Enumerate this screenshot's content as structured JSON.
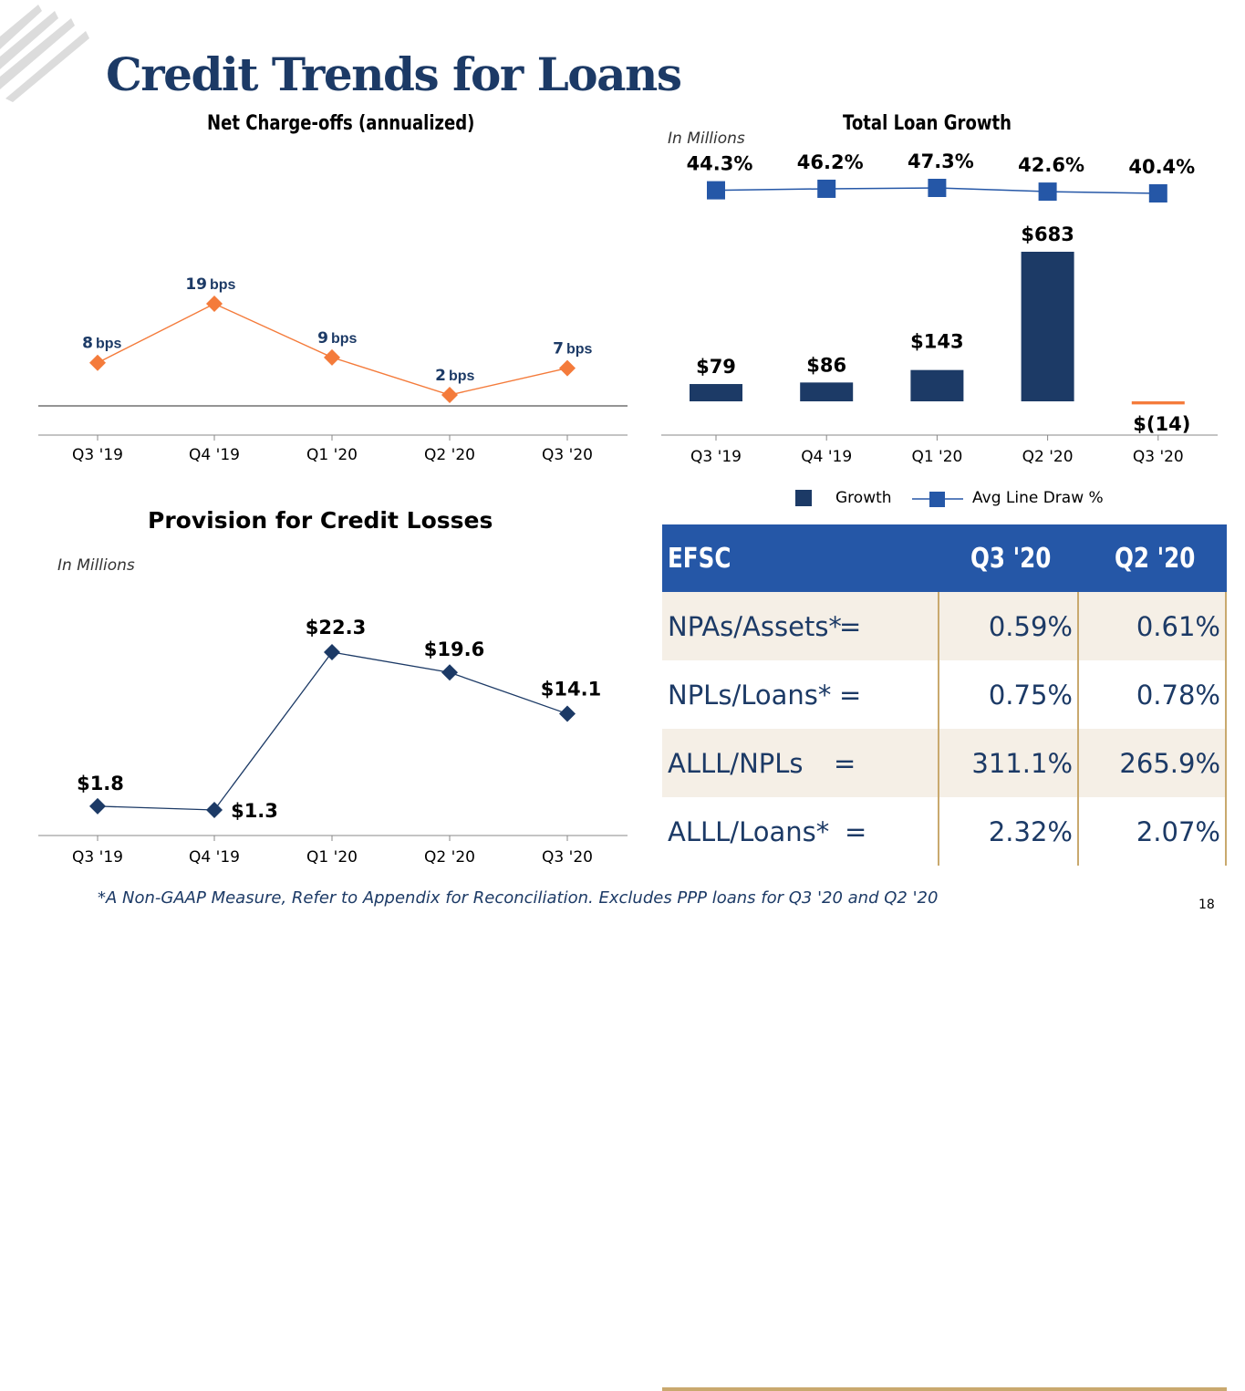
{
  "slide": {
    "title": "Credit Trends for Loans",
    "footnote": "*A Non-GAAP Measure, Refer to Appendix for Reconciliation. Excludes PPP loans for Q3 '20 and Q2 '20",
    "page_number": "18"
  },
  "colors": {
    "navy": "#1c3a66",
    "orange": "#f47b3b",
    "blue": "#2557a7",
    "gold": "#c9a96e",
    "beige": "#f5efe6"
  },
  "chart_data": [
    {
      "type": "line",
      "title": "Net Charge-offs (annualized)",
      "categories": [
        "Q3 '19",
        "Q4 '19",
        "Q1 '20",
        "Q2 '20",
        "Q3 '20"
      ],
      "values": [
        8,
        19,
        9,
        2,
        7
      ],
      "data_labels": [
        "8",
        "19",
        "9",
        "2",
        "7"
      ],
      "unit_label": "bps",
      "marker": "diamond",
      "color": "#f47b3b"
    },
    {
      "type": "bar",
      "title": "Total Loan Growth",
      "units_label": "In Millions",
      "categories": [
        "Q3 '19",
        "Q4 '19",
        "Q1 '20",
        "Q2 '20",
        "Q3 '20"
      ],
      "series": [
        {
          "name": "Growth",
          "type": "bar",
          "values": [
            79,
            86,
            143,
            683,
            -14
          ],
          "labels": [
            "$79",
            "$86",
            "$143",
            "$683",
            "$(14)"
          ],
          "color": "#1c3a66",
          "negative_color": "#f47b3b"
        },
        {
          "name": "Avg Line Draw %",
          "type": "line",
          "values": [
            44.3,
            46.2,
            47.3,
            42.6,
            40.4
          ],
          "labels": [
            "44.3%",
            "46.2%",
            "47.3%",
            "42.6%",
            "40.4%"
          ],
          "color": "#2557a7",
          "marker": "square"
        }
      ],
      "legend": [
        "Growth",
        "Avg Line Draw %"
      ],
      "legend_position": "bottom"
    },
    {
      "type": "line",
      "title": "Provision for Credit Losses",
      "units_label": "In Millions",
      "categories": [
        "Q3 '19",
        "Q4 '19",
        "Q1 '20",
        "Q2 '20",
        "Q3 '20"
      ],
      "values": [
        1.8,
        1.3,
        22.3,
        19.6,
        14.1
      ],
      "labels": [
        "$1.8",
        "$1.3",
        "$22.3",
        "$19.6",
        "$14.1"
      ],
      "marker": "diamond",
      "color": "#1c3a66"
    }
  ],
  "table": {
    "headers": [
      "EFSC",
      "Q3 '20",
      "Q2 '20"
    ],
    "rows": [
      {
        "label": "NPAs/Assets*",
        "sign": "=",
        "q3": "0.59%",
        "q2": "0.61%"
      },
      {
        "label": "NPLs/Loans*",
        "sign": "=",
        "q3": "0.75%",
        "q2": "0.78%"
      },
      {
        "label": "ALLL/NPLs",
        "sign": "=",
        "q3": "311.1%",
        "q2": "265.9%"
      },
      {
        "label": "ALLL/Loans*",
        "sign": "=",
        "q3": "2.32%",
        "q2": "2.07%"
      }
    ]
  }
}
